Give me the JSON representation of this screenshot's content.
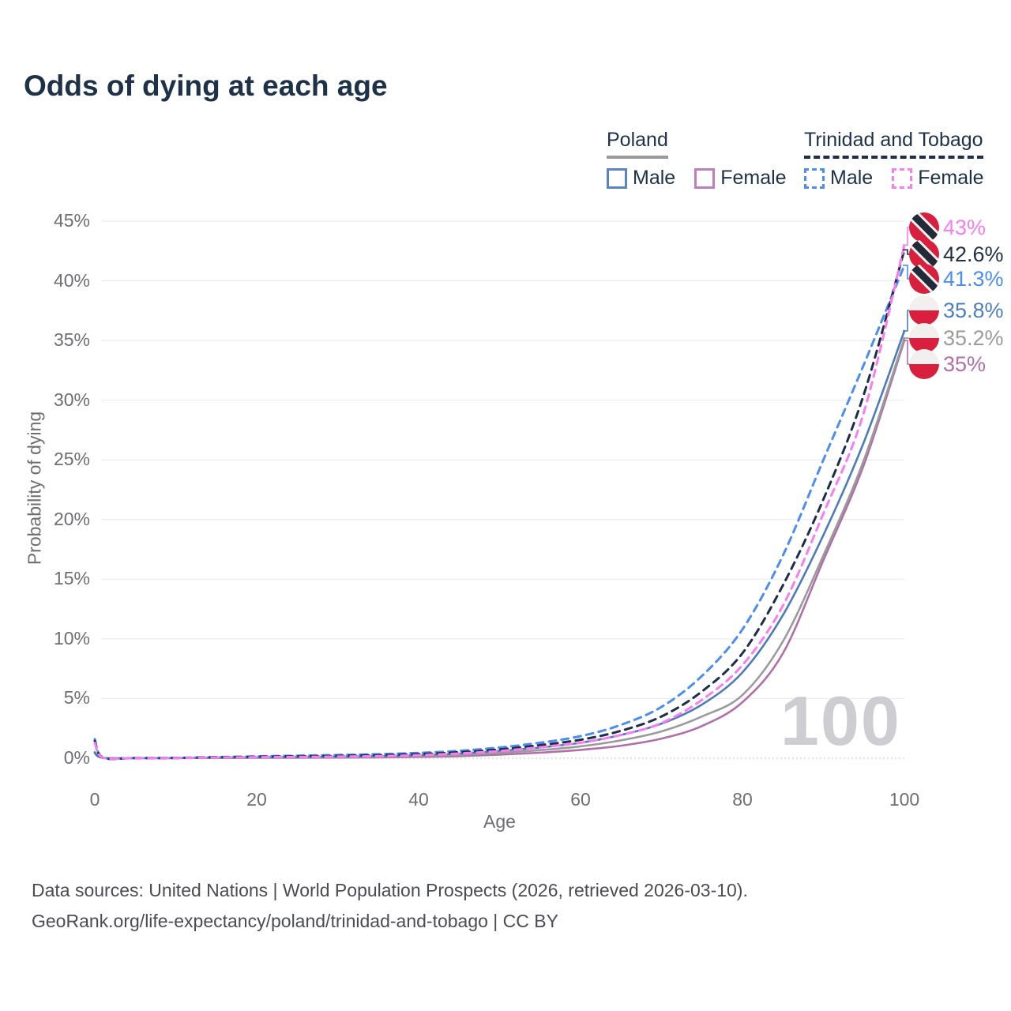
{
  "title": "Odds of dying at each age",
  "legend": {
    "poland": {
      "title": "Poland",
      "male_label": "Male",
      "female_label": "Female"
    },
    "trinidad_and_tobago": {
      "title": "Trinidad and Tobago",
      "male_label": "Male",
      "female_label": "Female"
    }
  },
  "axes": {
    "y_label": "Probability of dying",
    "x_label": "Age",
    "y_ticks": [
      "0%",
      "5%",
      "10%",
      "15%",
      "20%",
      "25%",
      "30%",
      "35%",
      "40%",
      "45%"
    ],
    "x_ticks": [
      "0",
      "20",
      "40",
      "60",
      "80",
      "100"
    ]
  },
  "watermark": "100",
  "footer": {
    "line1": "Data sources: United Nations | World Population Prospects (2026, retrieved 2026-03-10).",
    "line2": "GeoRank.org/life-expectancy/poland/trinidad-and-tobago | CC BY"
  },
  "colors": {
    "title_text": "#1d3148",
    "tick_text": "#6e6e73",
    "gridline": "#ebebee",
    "baseline": "#d7d7db",
    "poland_male": "#4d7cb9",
    "poland_female": "#b06fa8",
    "poland_combined": "#9b9b9b",
    "tt_male": "#4b8df2",
    "tt_female": "#fa7cf0",
    "tt_combined": "#1e2d49",
    "flag_red": "#d81f3d",
    "flag_white": "#f1f0ee",
    "flag_black_band": "#222a3a"
  },
  "chart_data": {
    "type": "line",
    "title": "Odds of dying at each age",
    "xlabel": "Age",
    "ylabel": "Probability of dying",
    "xlim": [
      0,
      100
    ],
    "ylim_pct": [
      0,
      45
    ],
    "grid": true,
    "x_ages": [
      0,
      1,
      5,
      10,
      15,
      20,
      25,
      30,
      35,
      40,
      45,
      50,
      55,
      60,
      65,
      70,
      75,
      80,
      85,
      90,
      95,
      100
    ],
    "series": [
      {
        "id": "poland_female",
        "name": "Poland Female",
        "country": "Poland",
        "sex": "Female",
        "style": "solid",
        "color": "#b06fa8",
        "values_pct": [
          0.4,
          0.03,
          0.01,
          0.01,
          0.02,
          0.03,
          0.04,
          0.05,
          0.07,
          0.11,
          0.18,
          0.3,
          0.47,
          0.7,
          1.05,
          1.65,
          2.7,
          4.7,
          8.8,
          16.6,
          24.6,
          35.0
        ],
        "end_value_pct": 35.0
      },
      {
        "id": "poland_combined",
        "name": "Poland (both sexes)",
        "country": "Poland",
        "sex": "Both",
        "style": "solid",
        "color": "#9b9b9b",
        "values_pct": [
          0.45,
          0.035,
          0.01,
          0.01,
          0.04,
          0.06,
          0.07,
          0.09,
          0.12,
          0.18,
          0.29,
          0.45,
          0.68,
          1.0,
          1.5,
          2.25,
          3.5,
          5.3,
          9.8,
          17.0,
          25.0,
          35.2
        ],
        "end_value_pct": 35.2
      },
      {
        "id": "poland_male",
        "name": "Poland Male",
        "country": "Poland",
        "sex": "Male",
        "style": "solid",
        "color": "#4d7cb9",
        "values_pct": [
          0.5,
          0.04,
          0.01,
          0.01,
          0.05,
          0.08,
          0.1,
          0.13,
          0.17,
          0.25,
          0.4,
          0.62,
          0.9,
          1.3,
          1.95,
          2.9,
          4.5,
          7.2,
          12.0,
          18.7,
          26.5,
          35.8
        ],
        "end_value_pct": 35.8
      },
      {
        "id": "tt_male",
        "name": "Trinidad and Tobago Male",
        "country": "Trinidad and Tobago",
        "sex": "Male",
        "style": "dashed",
        "color": "#4b8df2",
        "values_pct": [
          1.6,
          0.06,
          0.02,
          0.03,
          0.1,
          0.16,
          0.22,
          0.27,
          0.34,
          0.45,
          0.62,
          0.9,
          1.3,
          1.85,
          2.8,
          4.3,
          6.9,
          10.8,
          17.0,
          25.0,
          33.0,
          41.3
        ],
        "end_value_pct": 41.3
      },
      {
        "id": "tt_combined",
        "name": "Trinidad and Tobago (both sexes)",
        "country": "Trinidad and Tobago",
        "sex": "Both",
        "style": "dashed",
        "color": "#1e2d49",
        "values_pct": [
          1.45,
          0.055,
          0.02,
          0.025,
          0.08,
          0.12,
          0.16,
          0.2,
          0.26,
          0.35,
          0.5,
          0.74,
          1.1,
          1.55,
          2.3,
          3.5,
          5.6,
          8.8,
          14.5,
          21.7,
          30.5,
          42.6
        ],
        "end_value_pct": 42.6
      },
      {
        "id": "tt_female",
        "name": "Trinidad and Tobago Female",
        "country": "Trinidad and Tobago",
        "sex": "Female",
        "style": "dashed",
        "color": "#fa7cf0",
        "values_pct": [
          1.3,
          0.05,
          0.02,
          0.02,
          0.06,
          0.09,
          0.11,
          0.14,
          0.18,
          0.26,
          0.4,
          0.6,
          0.92,
          1.3,
          1.95,
          2.95,
          4.9,
          7.8,
          12.8,
          20.5,
          29.0,
          43.0
        ],
        "end_value_pct": 43.0
      }
    ],
    "end_labels": [
      {
        "series": "tt_female",
        "text": "43%",
        "color": "#fa7cf0",
        "flag": "trinidad-and-tobago-flag-icon"
      },
      {
        "series": "tt_combined",
        "text": "42.6%",
        "color": "#222f44",
        "flag": "trinidad-and-tobago-flag-icon"
      },
      {
        "series": "tt_male",
        "text": "41.3%",
        "color": "#4b8df2",
        "flag": "trinidad-and-tobago-flag-icon"
      },
      {
        "series": "poland_male",
        "text": "35.8%",
        "color": "#4e7fc0",
        "flag": "poland-flag-icon"
      },
      {
        "series": "poland_combined",
        "text": "35.2%",
        "color": "#9b9b9b",
        "flag": "poland-flag-icon"
      },
      {
        "series": "poland_female",
        "text": "35%",
        "color": "#b06fa8",
        "flag": "poland-flag-icon"
      }
    ],
    "legend_position": "top-right"
  }
}
